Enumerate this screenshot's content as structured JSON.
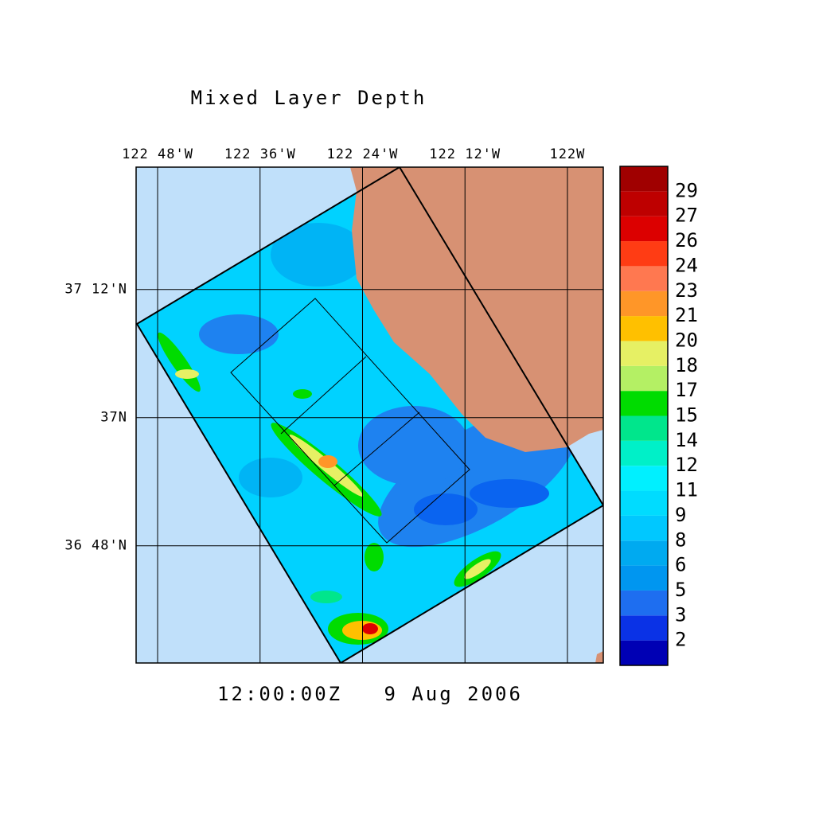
{
  "title": "Mixed Layer Depth",
  "time_label": "12:00:00Z   9 Aug 2006",
  "map": {
    "xlim": [
      -122.842,
      -121.93
    ],
    "ylim": [
      36.617,
      37.391
    ],
    "xticks": [
      {
        "value": -122.8,
        "label": "122 48'W"
      },
      {
        "value": -122.6,
        "label": "122 36'W"
      },
      {
        "value": -122.4,
        "label": "122 24'W"
      },
      {
        "value": -122.2,
        "label": "122 12'W"
      },
      {
        "value": -122.0,
        "label": "122W"
      }
    ],
    "yticks": [
      {
        "value": 37.2,
        "label": "37 12'N"
      },
      {
        "value": 37.0,
        "label": "37N"
      },
      {
        "value": 36.8,
        "label": "36 48'N"
      }
    ]
  },
  "colorbar": {
    "levels": [
      2,
      3,
      5,
      6,
      8,
      9,
      11,
      12,
      14,
      15,
      17,
      18,
      20,
      21,
      23,
      24,
      26,
      27,
      29
    ],
    "colors": [
      "#0000b4",
      "#0a32e6",
      "#1e6ef0",
      "#0096f0",
      "#00aaf0",
      "#00c8ff",
      "#00dcff",
      "#00f0ff",
      "#00f0c8",
      "#00e68c",
      "#00dc00",
      "#b4f064",
      "#e6f064",
      "#ffc000",
      "#ff9628",
      "#ff7850",
      "#ff3c14",
      "#dc0000",
      "#be0000",
      "#a00000"
    ]
  }
}
